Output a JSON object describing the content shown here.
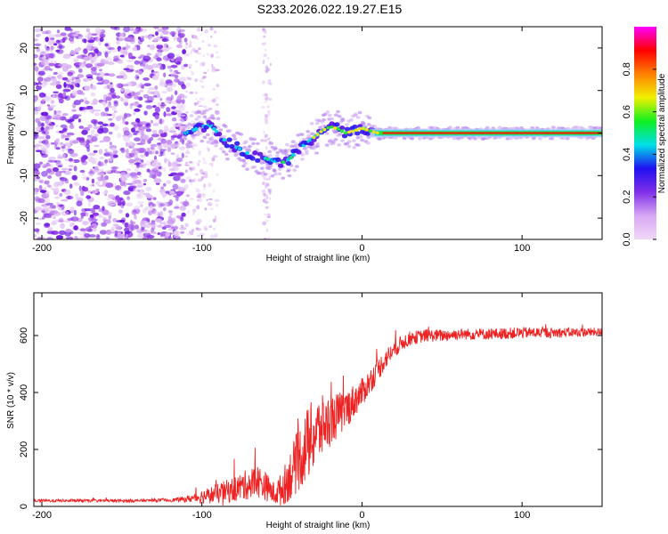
{
  "figure_title": "S233.2026.022.19.27.E15",
  "chart_data": [
    {
      "type": "heatmap",
      "name": "spectrogram",
      "xlabel": "Height of straight line (km)",
      "ylabel": "Frequency (Hz)",
      "xlim": [
        -205,
        150
      ],
      "ylim": [
        -25,
        25
      ],
      "xticks": [
        -200,
        -100,
        0,
        100
      ],
      "yticks": [
        -20,
        -10,
        0,
        10,
        20
      ],
      "colorbar": {
        "label": "Normalized spectral amplitude",
        "ticks": [
          "0.0",
          "0.2",
          "0.4",
          "0.6",
          "0.8"
        ],
        "range": [
          0,
          1
        ],
        "colormap": [
          "#f0d8f8",
          "#d8a8f4",
          "#8030e8",
          "#2010f0",
          "#00e0e8",
          "#10f020",
          "#f0f000",
          "#ff8000",
          "#ff0000",
          "#ff00ff"
        ]
      },
      "ridge": {
        "x": [
          -110,
          -100,
          -95,
          -90,
          -85,
          -80,
          -75,
          -70,
          -65,
          -60,
          -55,
          -50,
          -45,
          -40,
          -35,
          -30,
          -25,
          -20,
          -15,
          -10,
          -5,
          0,
          5,
          10,
          20,
          40,
          60,
          80,
          100,
          120,
          150
        ],
        "y": [
          0,
          1.5,
          2,
          0,
          -2,
          -3,
          -4,
          -5,
          -5.5,
          -6,
          -6.5,
          -7,
          -6,
          -4,
          -2.5,
          -1,
          0.5,
          1.5,
          1,
          0,
          0.5,
          1.2,
          0.5,
          0,
          0,
          0,
          0,
          0,
          0,
          0,
          0
        ]
      }
    },
    {
      "type": "line",
      "name": "snr",
      "xlabel": "Height of straight line (km)",
      "ylabel": "SNR (10 * v/v)",
      "xlim": [
        -205,
        150
      ],
      "ylim": [
        0,
        750
      ],
      "xticks": [
        -200,
        -100,
        0,
        100
      ],
      "yticks": [
        0,
        200,
        400,
        600
      ],
      "color": "#ee2222",
      "series": [
        {
          "name": "SNR",
          "x": [
            -205,
            -180,
            -160,
            -140,
            -120,
            -110,
            -100,
            -90,
            -80,
            -70,
            -65,
            -60,
            -55,
            -50,
            -45,
            -40,
            -35,
            -30,
            -25,
            -20,
            -15,
            -10,
            -5,
            0,
            5,
            10,
            15,
            20,
            25,
            30,
            40,
            50,
            60,
            80,
            100,
            120,
            150
          ],
          "y": [
            20,
            20,
            20,
            20,
            22,
            25,
            35,
            45,
            60,
            80,
            90,
            70,
            45,
            60,
            110,
            160,
            210,
            250,
            280,
            300,
            320,
            340,
            370,
            400,
            440,
            480,
            520,
            550,
            575,
            590,
            600,
            600,
            605,
            605,
            610,
            610,
            612
          ],
          "noise": [
            5,
            5,
            5,
            5,
            6,
            10,
            25,
            35,
            45,
            55,
            60,
            50,
            40,
            60,
            90,
            110,
            130,
            130,
            110,
            90,
            80,
            70,
            60,
            50,
            45,
            40,
            35,
            30,
            28,
            25,
            22,
            22,
            20,
            20,
            20,
            18,
            15
          ]
        }
      ]
    }
  ]
}
